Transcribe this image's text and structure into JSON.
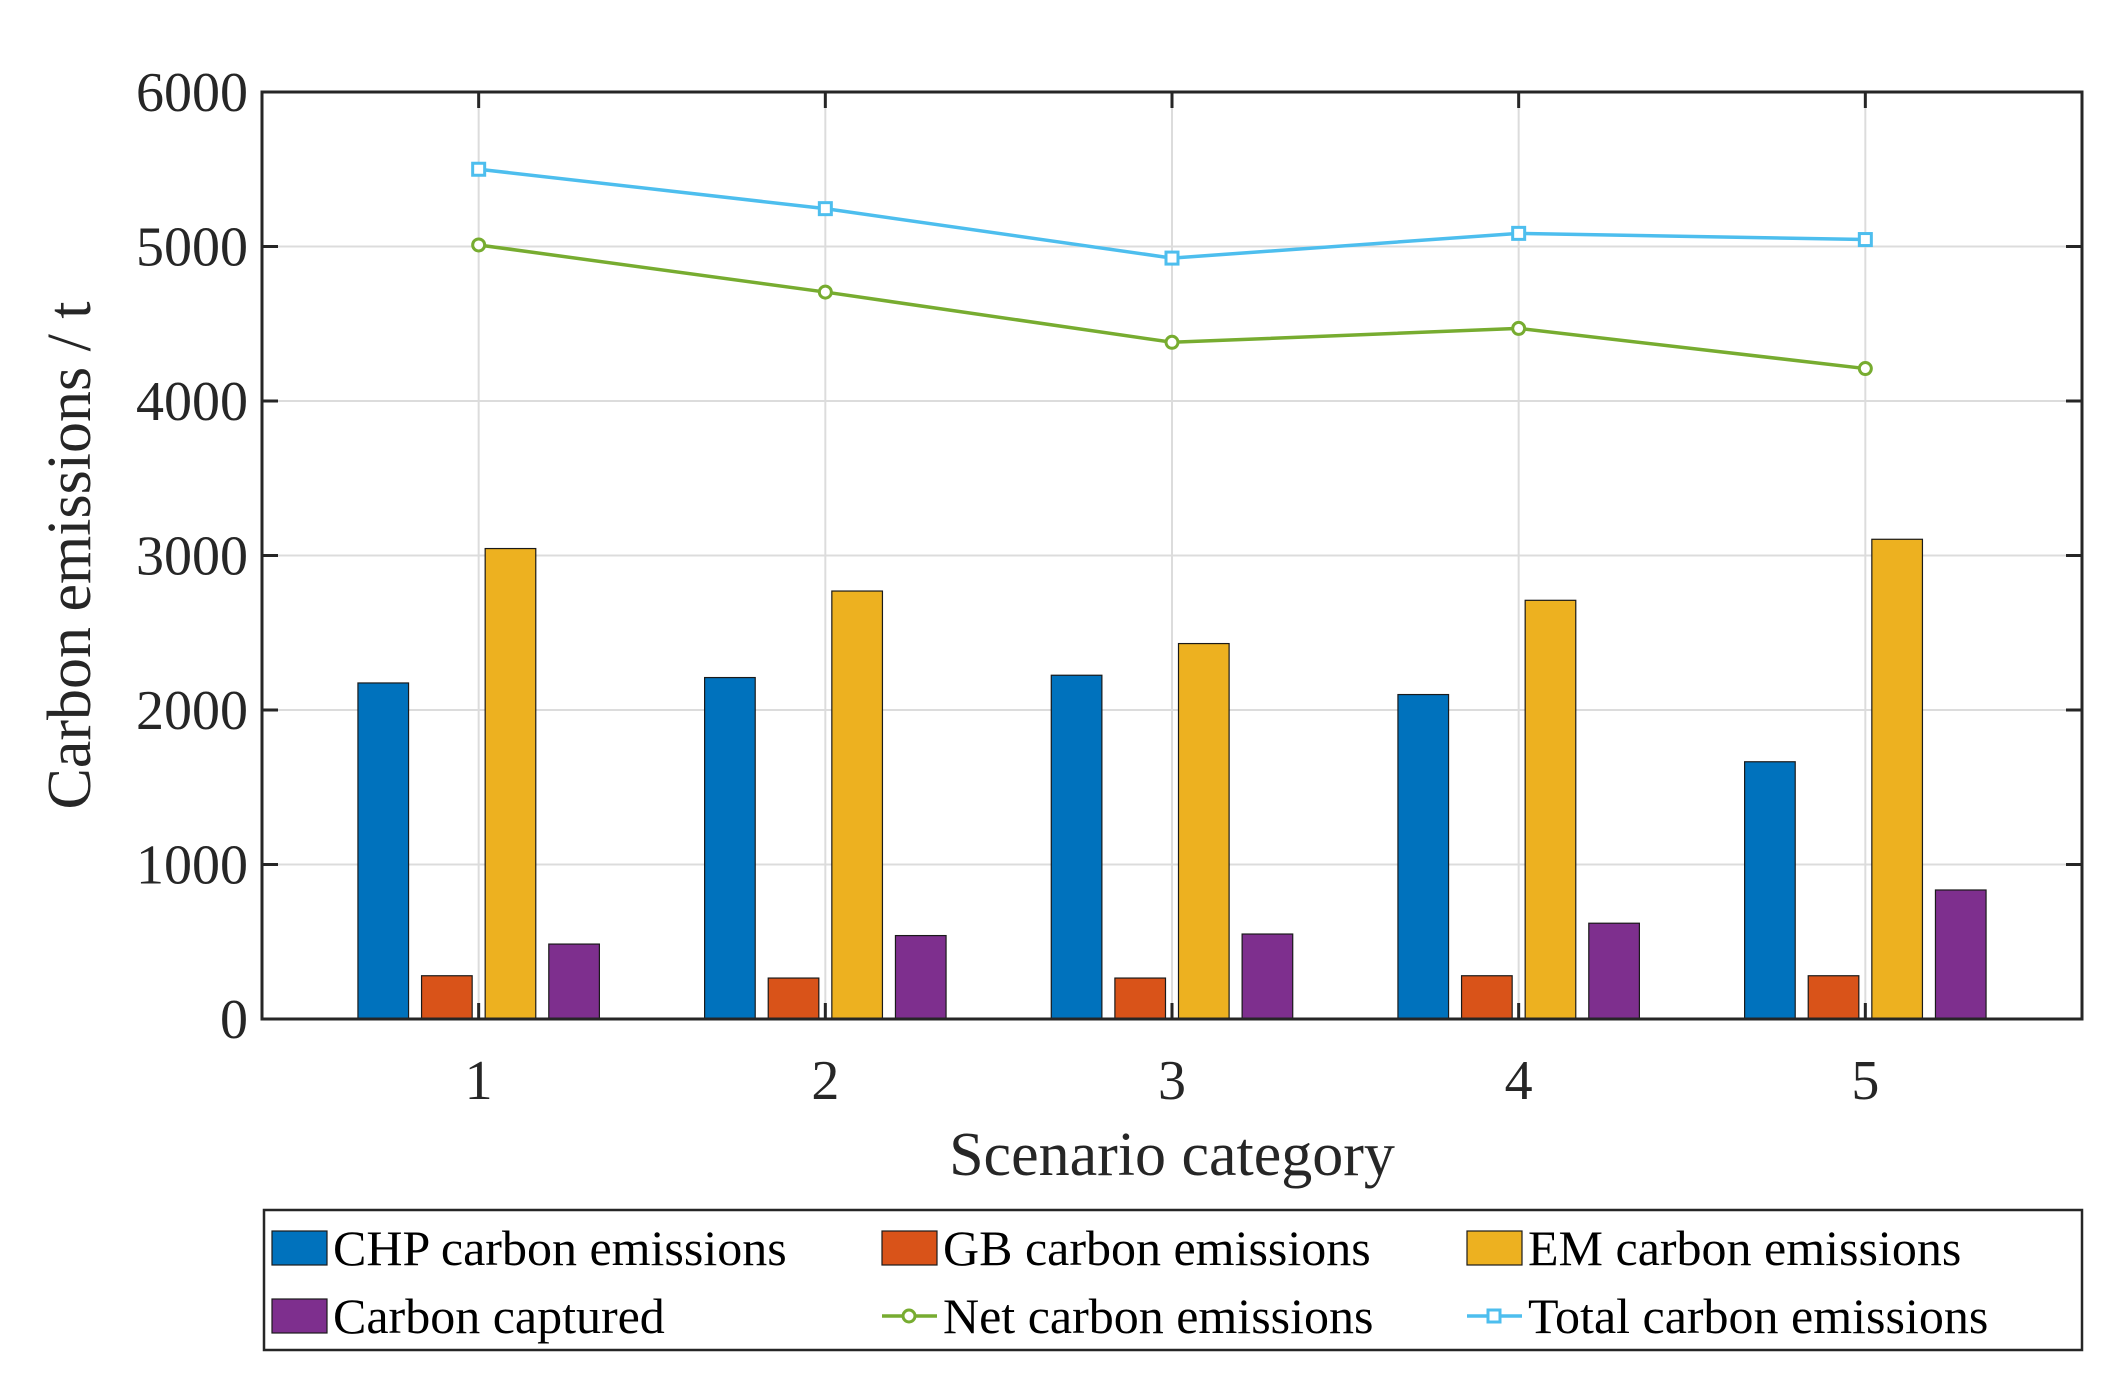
{
  "chart_data": {
    "type": "bar",
    "title": "",
    "xlabel": "Scenario category",
    "ylabel": "Carbon emissions / t",
    "ylim": [
      0,
      6000
    ],
    "yticks": [
      "0",
      "1000",
      "2000",
      "3000",
      "4000",
      "5000",
      "6000"
    ],
    "categories": [
      "1",
      "2",
      "3",
      "4",
      "5"
    ],
    "grid": true,
    "legend_position": "bottom",
    "bar_series": [
      {
        "name": "CHP carbon emissions",
        "color": "#0072BD",
        "values": [
          2175,
          2210,
          2225,
          2100,
          1665
        ]
      },
      {
        "name": "GB carbon emissions",
        "color": "#D95319",
        "values": [
          280,
          265,
          265,
          280,
          280
        ]
      },
      {
        "name": "EM carbon emissions",
        "color": "#EDB120",
        "values": [
          3045,
          2770,
          2430,
          2710,
          3105
        ]
      },
      {
        "name": "Carbon captured",
        "color": "#7E2F8E",
        "values": [
          485,
          540,
          550,
          620,
          835
        ]
      }
    ],
    "line_series": [
      {
        "name": "Net carbon emissions",
        "color": "#77AC30",
        "marker": "circle",
        "values": [
          5010,
          4705,
          4380,
          4470,
          4210
        ]
      },
      {
        "name": "Total carbon emissions",
        "color": "#4DBEEE",
        "marker": "square",
        "values": [
          5500,
          5245,
          4925,
          5085,
          5045
        ]
      }
    ]
  }
}
